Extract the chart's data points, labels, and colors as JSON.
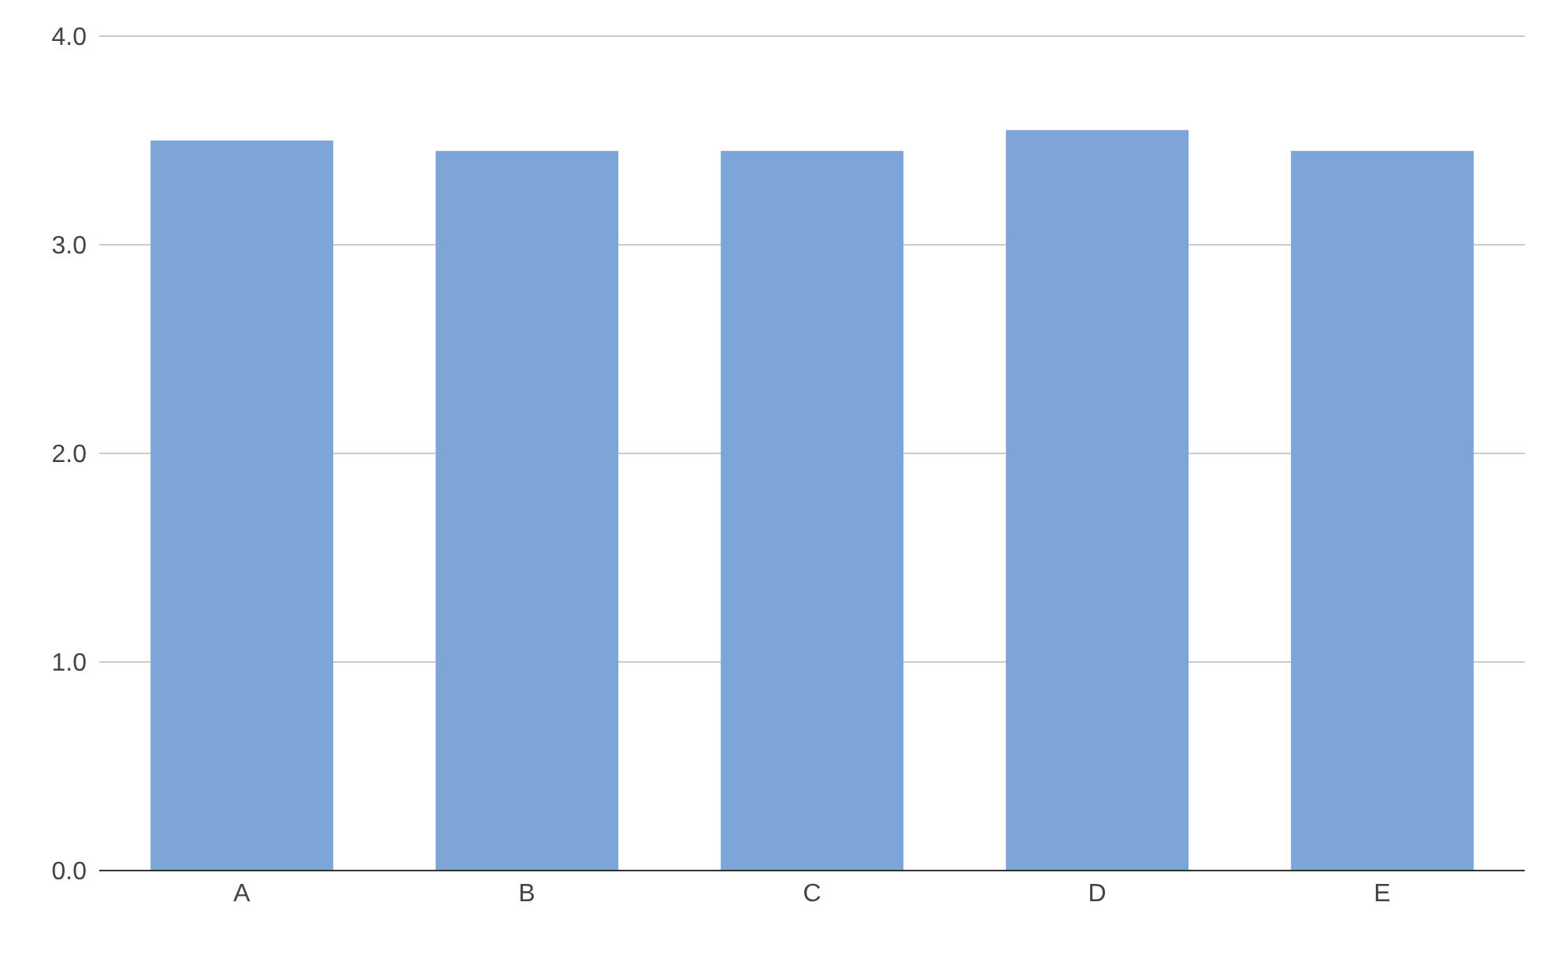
{
  "chart_data": {
    "type": "bar",
    "categories": [
      "A",
      "B",
      "C",
      "D",
      "E"
    ],
    "values": [
      3.5,
      3.45,
      3.45,
      3.55,
      3.45
    ],
    "color": "#7ea5d8",
    "ylim": [
      0,
      4
    ],
    "yticks": [
      {
        "value": 0,
        "label": "0.0"
      },
      {
        "value": 1,
        "label": "1.0"
      },
      {
        "value": 2,
        "label": "2.0"
      },
      {
        "value": 3,
        "label": "3.0"
      },
      {
        "value": 4,
        "label": "4.0"
      }
    ],
    "grid": "y"
  }
}
